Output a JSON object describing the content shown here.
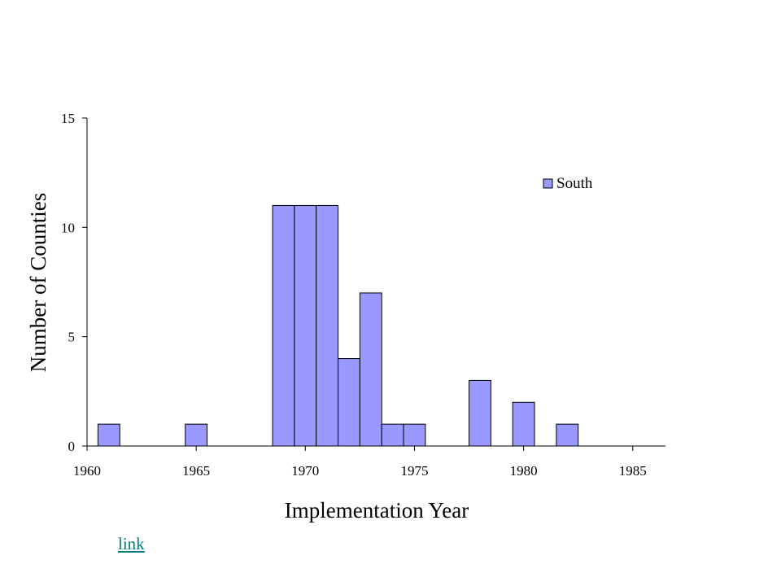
{
  "chart_data": {
    "type": "bar",
    "title": "",
    "xlabel": "Implementation Year",
    "ylabel": "Number of Counties",
    "xlim": [
      1960,
      1986.5
    ],
    "ylim": [
      0,
      15
    ],
    "x_ticks": [
      1960,
      1965,
      1970,
      1975,
      1980,
      1985
    ],
    "y_ticks": [
      0,
      5,
      10,
      15
    ],
    "bin_width": 1,
    "grid": false,
    "legend_position": "top-right",
    "series": [
      {
        "name": "South",
        "color": "#9999ff",
        "bins": [
          {
            "start": 1960.5,
            "value": 1
          },
          {
            "start": 1964.5,
            "value": 1
          },
          {
            "start": 1968.5,
            "value": 11
          },
          {
            "start": 1969.5,
            "value": 11
          },
          {
            "start": 1970.5,
            "value": 11
          },
          {
            "start": 1971.5,
            "value": 4
          },
          {
            "start": 1972.5,
            "value": 7
          },
          {
            "start": 1973.5,
            "value": 1
          },
          {
            "start": 1974.5,
            "value": 1
          },
          {
            "start": 1977.5,
            "value": 3
          },
          {
            "start": 1979.5,
            "value": 2
          },
          {
            "start": 1981.5,
            "value": 1
          }
        ]
      }
    ]
  },
  "footer": {
    "link_label": "link"
  }
}
